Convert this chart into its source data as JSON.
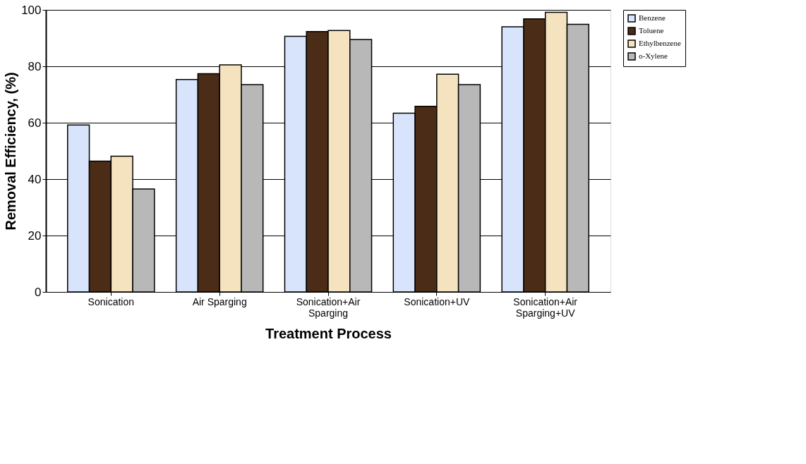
{
  "chart_data": {
    "type": "bar",
    "xlabel": "Treatment Process",
    "ylabel": "Removal Efficiency, (%)",
    "categories": [
      "Sonication",
      "Air Sparging",
      "Sonication+Air Sparging",
      "Sonication+UV",
      "Sonication+Air Sparging+UV"
    ],
    "series": [
      {
        "name": "Benzene",
        "color": "#d8e4fb",
        "values": [
          59.2,
          75.3,
          90.6,
          63.4,
          94.0
        ]
      },
      {
        "name": "Toluene",
        "color": "#4a2c17",
        "values": [
          46.4,
          77.4,
          92.3,
          65.8,
          96.8
        ]
      },
      {
        "name": "Ethylbenzene",
        "color": "#f5e3c0",
        "values": [
          48.1,
          80.5,
          92.7,
          77.2,
          99.1
        ]
      },
      {
        "name": "o-Xylene",
        "color": "#b8b8b8",
        "values": [
          36.5,
          73.5,
          89.5,
          73.5,
          94.9
        ]
      }
    ],
    "ylim": [
      0,
      100
    ],
    "yticks": [
      0,
      20,
      40,
      60,
      80,
      100
    ],
    "grid": "y",
    "legend": "right"
  }
}
